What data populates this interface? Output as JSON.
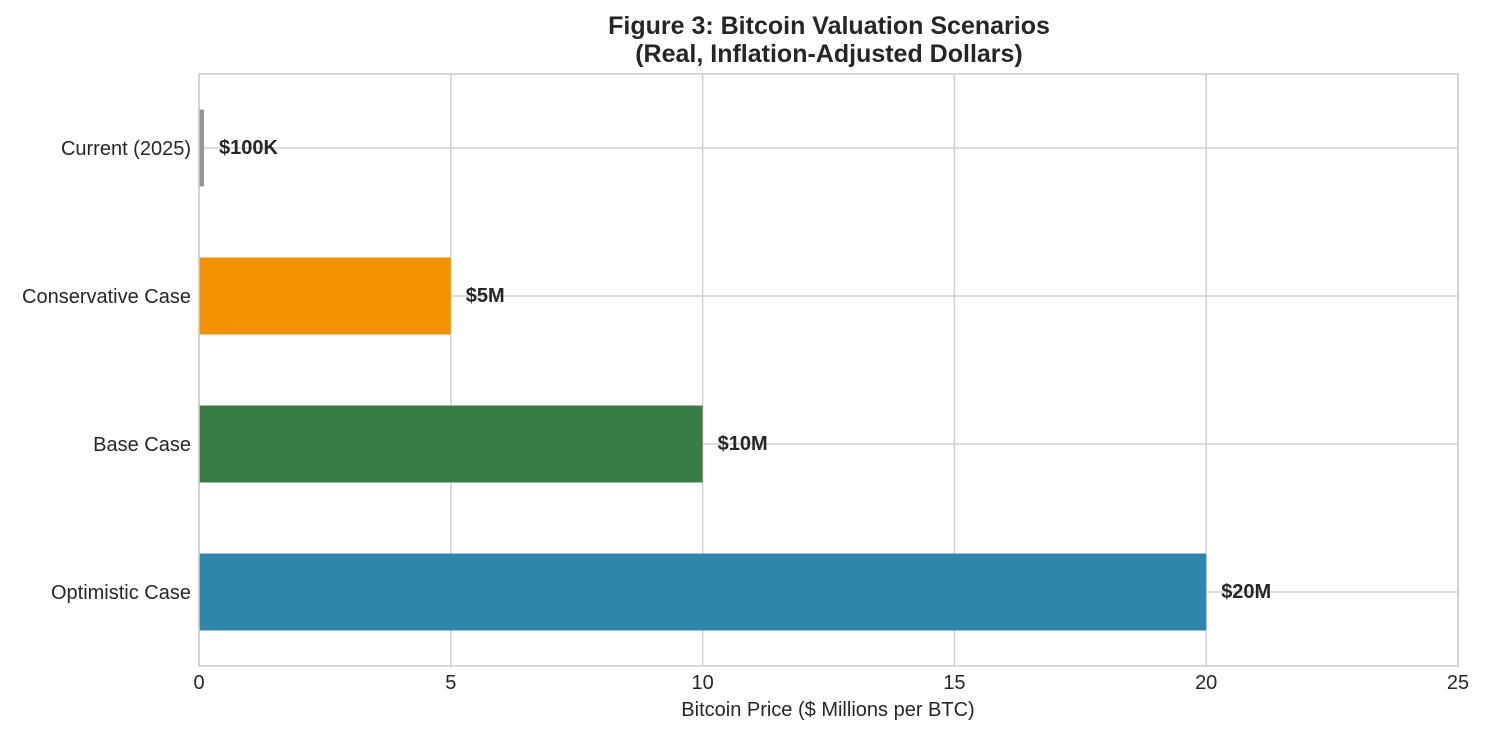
{
  "chart_data": {
    "type": "bar",
    "orientation": "horizontal",
    "title": "Figure 3: Bitcoin Valuation Scenarios",
    "subtitle": "(Real, Inflation-Adjusted Dollars)",
    "xlabel": "Bitcoin Price ($ Millions per BTC)",
    "ylabel": "",
    "xlim": [
      0,
      25
    ],
    "xticks": [
      0,
      5,
      10,
      15,
      20,
      25
    ],
    "grid": true,
    "categories": [
      "Current (2025)",
      "Conservative Case",
      "Base Case",
      "Optimistic Case"
    ],
    "values": [
      0.1,
      5,
      10,
      20
    ],
    "data_labels": [
      "$100K",
      "$5M",
      "$10M",
      "$20M"
    ],
    "colors": [
      "#959595",
      "#f39200",
      "#3a7d44",
      "#2e86ab"
    ]
  }
}
